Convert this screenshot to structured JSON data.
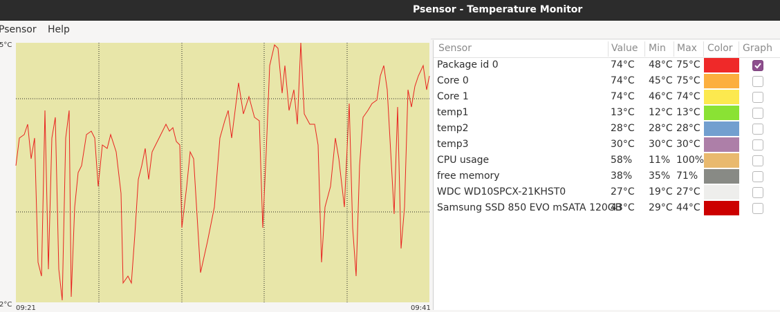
{
  "window": {
    "title": "Psensor - Temperature Monitor"
  },
  "menu": [
    "Psensor",
    "Help"
  ],
  "graph": {
    "y_top_label": "5°C",
    "y_bottom_label": "2°C",
    "x_start_label": "09:21",
    "x_end_label": "09:41"
  },
  "table": {
    "headers": [
      "Sensor",
      "Value",
      "Min",
      "Max",
      "Color",
      "Graph"
    ],
    "rows": [
      {
        "sensor": "Package id 0",
        "value": "74°C",
        "min": "48°C",
        "max": "75°C",
        "color": "#ef2929",
        "graph": true
      },
      {
        "sensor": "Core 0",
        "value": "74°C",
        "min": "45°C",
        "max": "75°C",
        "color": "#fcaf3e",
        "graph": false
      },
      {
        "sensor": "Core 1",
        "value": "74°C",
        "min": "46°C",
        "max": "74°C",
        "color": "#fce94f",
        "graph": false
      },
      {
        "sensor": "temp1",
        "value": "13°C",
        "min": "12°C",
        "max": "13°C",
        "color": "#8ae234",
        "graph": false
      },
      {
        "sensor": "temp2",
        "value": "28°C",
        "min": "28°C",
        "max": "28°C",
        "color": "#729fcf",
        "graph": false
      },
      {
        "sensor": "temp3",
        "value": "30°C",
        "min": "30°C",
        "max": "30°C",
        "color": "#ad7fa8",
        "graph": false
      },
      {
        "sensor": "CPU usage",
        "value": "58%",
        "min": "11%",
        "max": "100%",
        "color": "#e9b96e",
        "graph": false
      },
      {
        "sensor": "free memory",
        "value": "38%",
        "min": "35%",
        "max": "71%",
        "color": "#888a85",
        "graph": false
      },
      {
        "sensor": "WDC WD10SPCX-21KHST0",
        "value": "27°C",
        "min": "19°C",
        "max": "27°C",
        "color": "#eeeeec",
        "graph": false
      },
      {
        "sensor": "Samsung SSD 850 EVO mSATA 120GB",
        "value": "43°C",
        "min": "29°C",
        "max": "44°C",
        "color": "#cc0000",
        "graph": false
      }
    ]
  }
}
